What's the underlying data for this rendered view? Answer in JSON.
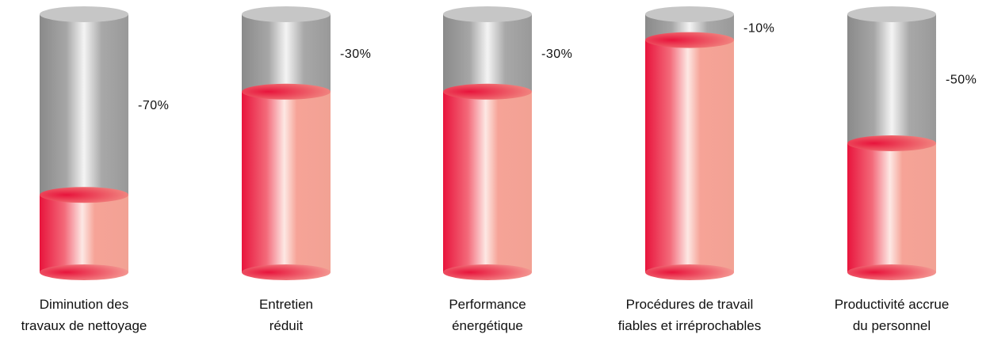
{
  "chart_data": {
    "type": "bar",
    "style": "3d-cylinder",
    "categories": [
      [
        "Diminution des",
        "travaux de nettoyage"
      ],
      [
        "Entretien",
        "réduit"
      ],
      [
        "Performance",
        "énergétique"
      ],
      [
        "Procédures de travail",
        "fiables et irréprochables"
      ],
      [
        "Productivité accrue",
        "du personnel"
      ]
    ],
    "values": [
      -70,
      -30,
      -30,
      -10,
      -50
    ],
    "value_labels": [
      "-70%",
      "-30%",
      "-30%",
      "-10%",
      "-50%"
    ],
    "ylim": [
      -100,
      0
    ],
    "grid": false,
    "legend": "none",
    "colors": {
      "empty_dark": "#8a8a8a",
      "empty_light": "#f4f4f4",
      "empty_top": "#c6c6c6",
      "fill_dark": "#e8143c",
      "fill_light": "#fde8e4",
      "fill_mid": "#f6a397",
      "fill_top": "#ee8a80"
    }
  }
}
